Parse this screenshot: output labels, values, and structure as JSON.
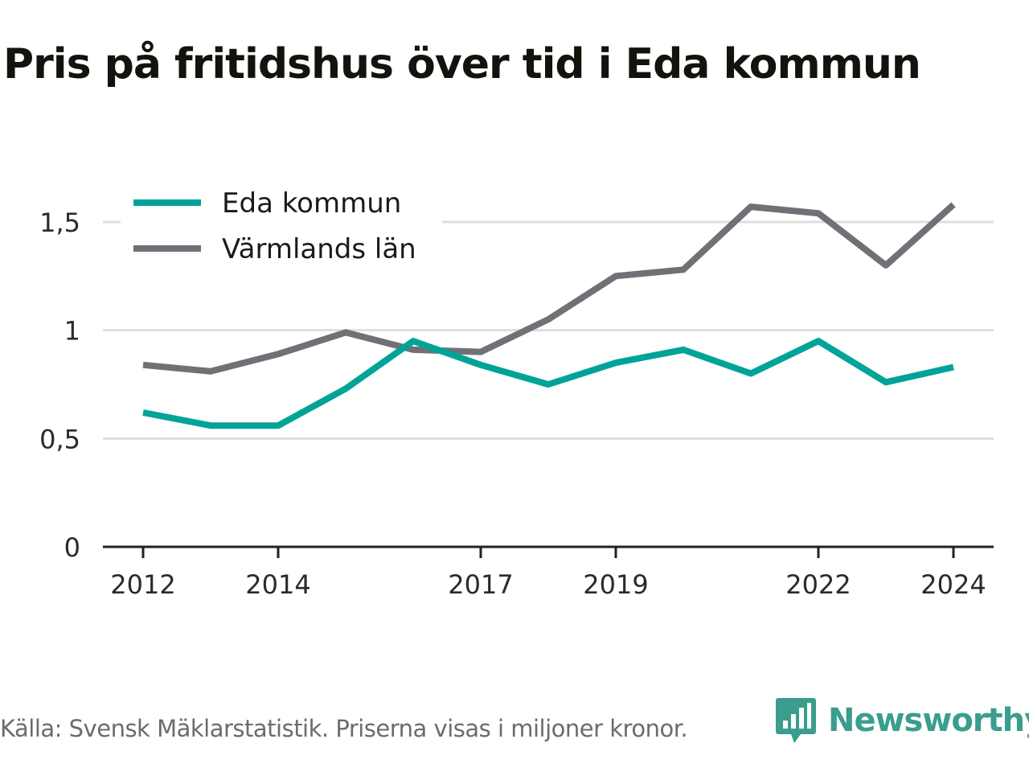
{
  "title": "Pris på fritidshus över tid i Eda kommun",
  "footer": {
    "source": "Källa: Svensk Mäklarstatistik. Priserna visas i miljoner kronor.",
    "brand": "Newsworthy"
  },
  "colors": {
    "eda": "#00a398",
    "varmland": "#707076",
    "grid": "#dedede",
    "axis": "#222222",
    "brand": "#3a9d8e"
  },
  "chart_data": {
    "type": "line",
    "title": "Pris på fritidshus över tid i Eda kommun",
    "xlabel": "",
    "ylabel": "",
    "x": [
      2012,
      2013,
      2014,
      2015,
      2016,
      2017,
      2018,
      2019,
      2020,
      2021,
      2022,
      2023,
      2024
    ],
    "x_ticks": [
      "2012",
      "2014",
      "2017",
      "2019",
      "2022",
      "2024"
    ],
    "y_ticks": [
      "0",
      "0,5",
      "1",
      "1,5"
    ],
    "ylim": [
      0,
      1.5
    ],
    "grid": true,
    "legend_position": "top-left",
    "series": [
      {
        "name": "Eda kommun",
        "color": "#00a398",
        "values": [
          0.62,
          0.56,
          0.56,
          0.73,
          0.95,
          0.84,
          0.75,
          0.85,
          0.91,
          0.8,
          0.95,
          0.76,
          0.83
        ]
      },
      {
        "name": "Värmlands län",
        "color": "#707076",
        "values": [
          0.84,
          0.81,
          0.89,
          0.99,
          0.91,
          0.9,
          1.05,
          1.25,
          1.28,
          1.57,
          1.54,
          1.3,
          1.58
        ]
      }
    ]
  }
}
